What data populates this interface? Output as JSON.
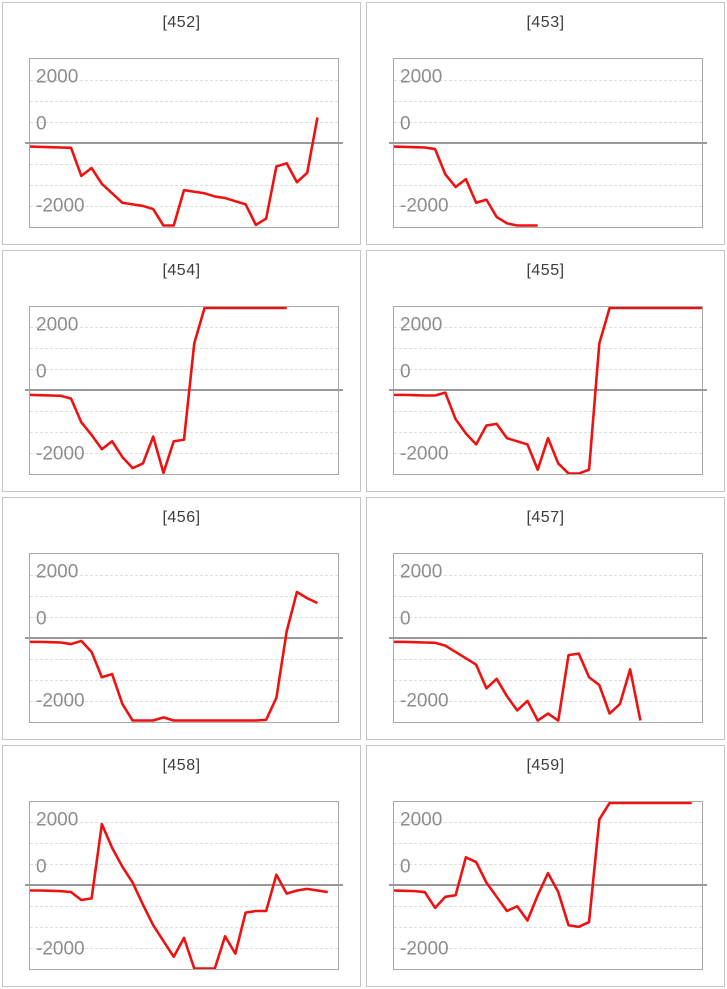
{
  "page": {
    "background": "#ffffff"
  },
  "colors": {
    "series": "#ef1010",
    "zero_line": "#999999",
    "gridline": "#dddddd",
    "plot_border": "#a8a8a8",
    "cell_border": "#c5c5c5",
    "tick_text": "#8d8d8d",
    "title_text": "#3d3d3d"
  },
  "axis": {
    "tick_labels": [
      "2000",
      "0",
      "-2000"
    ],
    "tick_values": [
      2000,
      0,
      -2000
    ],
    "ymin": -2650,
    "ymax": 2650,
    "gridline_step": 666.7,
    "x_slots": 31
  },
  "chart_data": [
    {
      "type": "line",
      "title": "[452]",
      "ylim": [
        -2650,
        2650
      ],
      "yticks": [
        2000,
        0,
        -2000
      ],
      "values": [
        -120,
        -130,
        -140,
        -150,
        -160,
        -1050,
        -800,
        -1300,
        -1600,
        -1900,
        -1950,
        -2000,
        -2100,
        -2700,
        -2700,
        -1500,
        -1550,
        -1600,
        -1700,
        -1750,
        -1850,
        -1950,
        -2600,
        -2400,
        -750,
        -650,
        -1250,
        -950,
        800
      ]
    },
    {
      "type": "line",
      "title": "[453]",
      "ylim": [
        -2650,
        2650
      ],
      "yticks": [
        2000,
        0,
        -2000
      ],
      "values": [
        -120,
        -130,
        -140,
        -150,
        -200,
        -1000,
        -1400,
        -1150,
        -1900,
        -1800,
        -2350,
        -2550,
        -2700,
        -2700,
        -2700
      ]
    },
    {
      "type": "line",
      "title": "[454]",
      "ylim": [
        -2650,
        2650
      ],
      "yticks": [
        2000,
        0,
        -2000
      ],
      "values": [
        -130,
        -140,
        -150,
        -160,
        -250,
        -1000,
        -1400,
        -1850,
        -1600,
        -2100,
        -2450,
        -2300,
        -1450,
        -2600,
        -1600,
        -1550,
        1500,
        2700,
        2700,
        2700,
        2700,
        2700,
        2700,
        2700,
        2700,
        2700
      ]
    },
    {
      "type": "line",
      "title": "[455]",
      "ylim": [
        -2650,
        2650
      ],
      "yticks": [
        2000,
        0,
        -2000
      ],
      "values": [
        -130,
        -130,
        -140,
        -150,
        -150,
        -60,
        -900,
        -1350,
        -1700,
        -1100,
        -1050,
        -1500,
        -1600,
        -1700,
        -2500,
        -1500,
        -2300,
        -2650,
        -2700,
        -2500,
        1500,
        2700,
        2700,
        2700,
        2700,
        2700,
        2700,
        2700,
        2700,
        2700,
        2700
      ]
    },
    {
      "type": "line",
      "title": "[456]",
      "ylim": [
        -2650,
        2650
      ],
      "yticks": [
        2000,
        0,
        -2000
      ],
      "values": [
        -130,
        -130,
        -140,
        -150,
        -200,
        -100,
        -450,
        -1250,
        -1150,
        -2100,
        -2650,
        -2700,
        -2700,
        -2520,
        -2700,
        -2700,
        -2700,
        -2700,
        -2700,
        -2700,
        -2700,
        -2700,
        -2700,
        -2600,
        -1900,
        200,
        1450,
        1250,
        1100
      ]
    },
    {
      "type": "line",
      "title": "[457]",
      "ylim": [
        -2650,
        2650
      ],
      "yticks": [
        2000,
        0,
        -2000
      ],
      "values": [
        -130,
        -130,
        -140,
        -150,
        -160,
        -250,
        -450,
        -650,
        -850,
        -1600,
        -1300,
        -1850,
        -2300,
        -2000,
        -2650,
        -2400,
        -2700,
        -550,
        -500,
        -1250,
        -1500,
        -2400,
        -2100,
        -1000,
        -2700
      ]
    },
    {
      "type": "line",
      "title": "[458]",
      "ylim": [
        -2650,
        2650
      ],
      "yticks": [
        2000,
        0,
        -2000
      ],
      "values": [
        -150,
        -150,
        -160,
        -170,
        -200,
        -450,
        -400,
        1950,
        1200,
        600,
        100,
        -600,
        -1250,
        -1750,
        -2250,
        -1650,
        -2700,
        -2700,
        -2700,
        -1600,
        -2150,
        -850,
        -800,
        -800,
        350,
        -250,
        -150,
        -100,
        -150,
        -200
      ]
    },
    {
      "type": "line",
      "title": "[459]",
      "ylim": [
        -2650,
        2650
      ],
      "yticks": [
        2000,
        0,
        -2000
      ],
      "values": [
        -150,
        -160,
        -170,
        -200,
        -700,
        -350,
        -300,
        900,
        750,
        100,
        -350,
        -800,
        -650,
        -1100,
        -300,
        400,
        -200,
        -1250,
        -1300,
        -1150,
        2100,
        2700,
        2700,
        2700,
        2700,
        2700,
        2700,
        2700,
        2700,
        2700
      ]
    }
  ]
}
